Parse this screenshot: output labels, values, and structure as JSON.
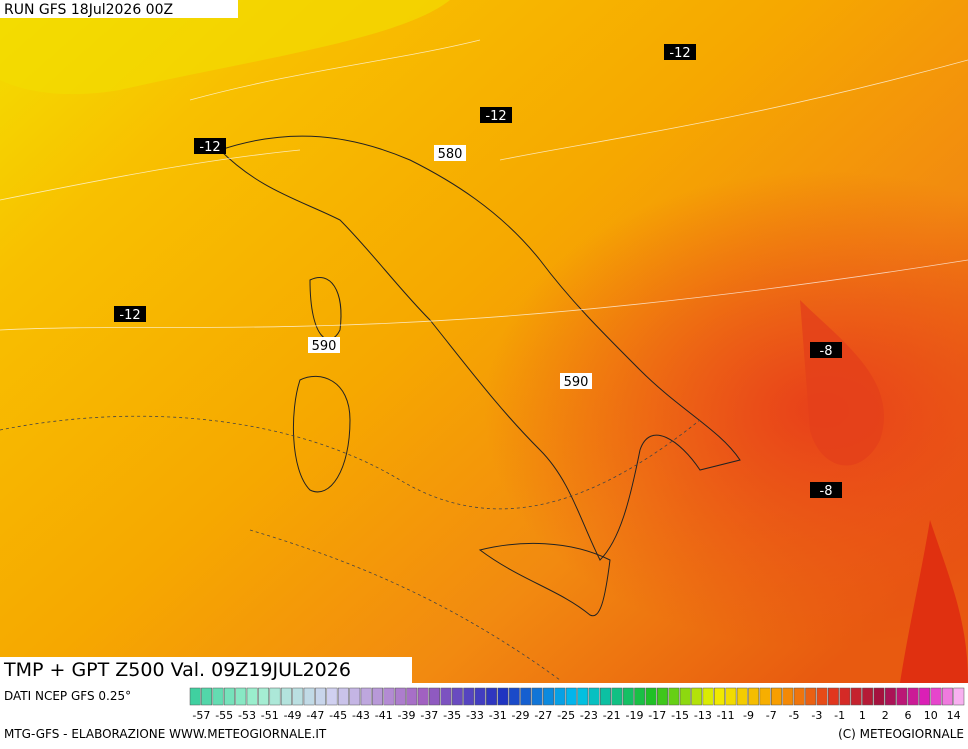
{
  "header": {
    "run": "RUN GFS 18Jul2026 00Z",
    "title": "TMP + GPT Z500 Val. 09Z19JUL2026"
  },
  "contour_labels": [
    "-12",
    "-12",
    "-12",
    "-12",
    "580",
    "590",
    "590",
    "-8",
    "-8"
  ],
  "legend": {
    "source": "DATI NCEP GFS 0.25°",
    "scale": [
      "-57",
      "-55",
      "-53",
      "-51",
      "-49",
      "-47",
      "-45",
      "-43",
      "-41",
      "-39",
      "-37",
      "-35",
      "-33",
      "-31",
      "-29",
      "-27",
      "-25",
      "-23",
      "-21",
      "-19",
      "-17",
      "-15",
      "-13",
      "-11",
      "-9",
      "-7",
      "-5",
      "-3",
      "-1",
      "1",
      "2",
      "6",
      "10",
      "14"
    ]
  },
  "footer": {
    "left": "MTG-GFS - ELABORAZIONE WWW.METEOGIORNALE.IT",
    "right": "(C) METEOGIORNALE"
  }
}
